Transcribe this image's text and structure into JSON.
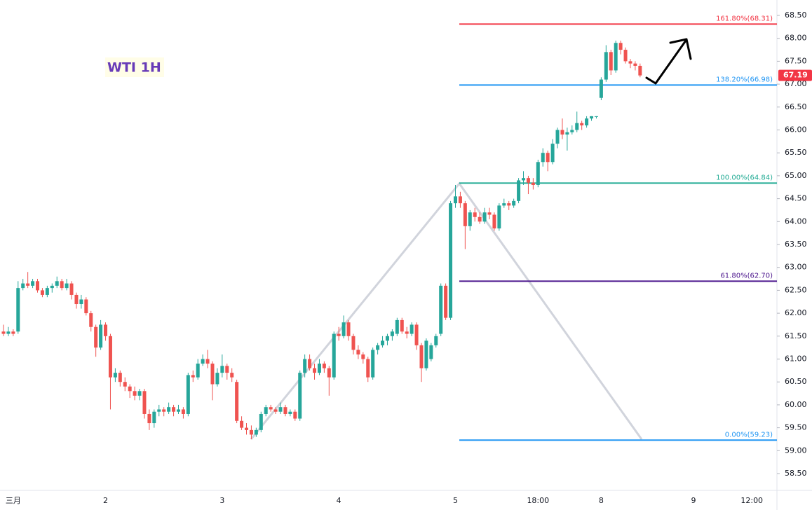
{
  "chart_data": {
    "type": "candlestick",
    "title": "WTI 1H",
    "up_color": "#26a69a",
    "down_color": "#ef5350",
    "categories": [
      null,
      null,
      "三月",
      null,
      null,
      null,
      null,
      null,
      null,
      null,
      null,
      null,
      null,
      null,
      null,
      null,
      null,
      null,
      null,
      null,
      null,
      "2",
      null,
      null,
      null,
      null,
      null,
      null,
      null,
      null,
      null,
      null,
      null,
      null,
      null,
      null,
      null,
      null,
      null,
      null,
      null,
      null,
      null,
      null,
      null,
      "3",
      null,
      null,
      null,
      null,
      null,
      null,
      null,
      null,
      null,
      null,
      null,
      null,
      null,
      null,
      null,
      null,
      null,
      null,
      null,
      null,
      null,
      null,
      null,
      "4",
      null,
      null,
      null,
      null,
      null,
      null,
      null,
      null,
      null,
      null,
      null,
      null,
      null,
      null,
      null,
      null,
      null,
      null,
      null,
      null,
      null,
      null,
      null,
      "5",
      null,
      null,
      null,
      null,
      null,
      null,
      null,
      null,
      null,
      null,
      null,
      null,
      null,
      null,
      null,
      null,
      "18:00",
      null,
      null,
      null,
      null,
      null,
      null,
      null,
      null,
      null,
      null,
      null,
      null,
      "8",
      null,
      null,
      null,
      null,
      null,
      null,
      null,
      null,
      null,
      null,
      null,
      null,
      null,
      null,
      null,
      null,
      null,
      null,
      "9",
      null,
      null,
      null,
      null,
      null,
      null,
      null,
      null,
      null,
      null,
      null,
      "12:00",
      null,
      null,
      null,
      null,
      null
    ],
    "candles": [
      [
        61.6,
        61.75,
        61.5,
        61.55
      ],
      [
        61.55,
        61.7,
        61.5,
        61.6
      ],
      [
        61.6,
        61.65,
        61.5,
        61.55
      ],
      [
        61.6,
        62.7,
        61.55,
        62.55
      ],
      [
        62.55,
        62.75,
        62.5,
        62.65
      ],
      [
        62.65,
        62.9,
        62.55,
        62.6
      ],
      [
        62.6,
        62.75,
        62.55,
        62.7
      ],
      [
        62.7,
        62.75,
        62.45,
        62.5
      ],
      [
        62.5,
        62.55,
        62.35,
        62.4
      ],
      [
        62.4,
        62.6,
        62.35,
        62.55
      ],
      [
        62.55,
        62.65,
        62.45,
        62.6
      ],
      [
        62.6,
        62.8,
        62.55,
        62.7
      ],
      [
        62.7,
        62.75,
        62.5,
        62.55
      ],
      [
        62.55,
        62.75,
        62.5,
        62.65
      ],
      [
        62.65,
        62.7,
        62.3,
        62.4
      ],
      [
        62.4,
        62.45,
        62.1,
        62.2
      ],
      [
        62.2,
        62.4,
        62.1,
        62.3
      ],
      [
        62.3,
        62.35,
        61.95,
        62.0
      ],
      [
        62.0,
        62.05,
        61.6,
        61.7
      ],
      [
        61.7,
        61.75,
        61.05,
        61.25
      ],
      [
        61.25,
        61.85,
        61.2,
        61.75
      ],
      [
        61.75,
        61.8,
        61.4,
        61.5
      ],
      [
        61.5,
        61.55,
        59.9,
        60.6
      ],
      [
        60.6,
        60.8,
        60.5,
        60.7
      ],
      [
        60.7,
        60.75,
        60.4,
        60.5
      ],
      [
        60.5,
        60.6,
        60.3,
        60.4
      ],
      [
        60.4,
        60.45,
        60.15,
        60.3
      ],
      [
        60.3,
        60.4,
        60.1,
        60.2
      ],
      [
        60.2,
        60.35,
        60.1,
        60.3
      ],
      [
        60.3,
        60.35,
        59.7,
        59.8
      ],
      [
        59.8,
        59.9,
        59.45,
        59.6
      ],
      [
        59.6,
        59.9,
        59.5,
        59.85
      ],
      [
        59.85,
        60.0,
        59.75,
        59.9
      ],
      [
        59.9,
        59.95,
        59.75,
        59.85
      ],
      [
        59.85,
        60.05,
        59.8,
        59.95
      ],
      [
        59.95,
        60.0,
        59.75,
        59.85
      ],
      [
        59.85,
        60.0,
        59.8,
        59.9
      ],
      [
        59.9,
        59.95,
        59.7,
        59.8
      ],
      [
        59.8,
        60.7,
        59.75,
        60.65
      ],
      [
        60.65,
        60.75,
        60.5,
        60.6
      ],
      [
        60.6,
        61.0,
        60.55,
        60.9
      ],
      [
        60.9,
        61.1,
        60.85,
        61.0
      ],
      [
        61.0,
        61.2,
        60.8,
        60.9
      ],
      [
        60.9,
        60.95,
        60.1,
        60.45
      ],
      [
        60.45,
        60.8,
        60.4,
        60.7
      ],
      [
        60.7,
        61.1,
        60.6,
        60.85
      ],
      [
        60.85,
        60.9,
        60.55,
        60.7
      ],
      [
        60.7,
        60.8,
        60.5,
        60.6
      ],
      [
        60.5,
        60.55,
        59.6,
        59.65
      ],
      [
        59.65,
        59.75,
        59.45,
        59.5
      ],
      [
        59.5,
        59.6,
        59.35,
        59.45
      ],
      [
        59.45,
        59.55,
        59.25,
        59.35
      ],
      [
        59.35,
        59.5,
        59.3,
        59.45
      ],
      [
        59.45,
        59.85,
        59.4,
        59.8
      ],
      [
        59.8,
        60.0,
        59.75,
        59.95
      ],
      [
        59.95,
        60.0,
        59.85,
        59.9
      ],
      [
        59.9,
        59.95,
        59.8,
        59.85
      ],
      [
        59.85,
        60.05,
        59.8,
        59.95
      ],
      [
        59.95,
        60.0,
        59.75,
        59.8
      ],
      [
        59.8,
        59.9,
        59.75,
        59.85
      ],
      [
        59.85,
        59.9,
        59.65,
        59.7
      ],
      [
        59.7,
        60.75,
        59.65,
        60.7
      ],
      [
        60.7,
        61.1,
        60.6,
        61.0
      ],
      [
        61.0,
        61.1,
        60.75,
        60.8
      ],
      [
        60.8,
        60.9,
        60.55,
        60.7
      ],
      [
        60.7,
        61.0,
        60.65,
        60.9
      ],
      [
        60.9,
        60.95,
        60.7,
        60.8
      ],
      [
        60.8,
        60.85,
        60.2,
        60.6
      ],
      [
        60.6,
        61.6,
        60.55,
        61.55
      ],
      [
        61.55,
        61.7,
        61.4,
        61.5
      ],
      [
        61.5,
        61.95,
        61.45,
        61.8
      ],
      [
        61.8,
        61.85,
        61.4,
        61.5
      ],
      [
        61.5,
        61.55,
        61.1,
        61.2
      ],
      [
        61.2,
        61.3,
        61.0,
        61.1
      ],
      [
        61.1,
        61.15,
        60.9,
        61.0
      ],
      [
        61.0,
        61.05,
        60.5,
        60.6
      ],
      [
        60.6,
        61.25,
        60.55,
        61.2
      ],
      [
        61.2,
        61.35,
        61.1,
        61.3
      ],
      [
        61.3,
        61.5,
        61.25,
        61.4
      ],
      [
        61.4,
        61.55,
        61.3,
        61.5
      ],
      [
        61.5,
        61.65,
        61.4,
        61.6
      ],
      [
        61.55,
        61.9,
        61.5,
        61.85
      ],
      [
        61.85,
        61.9,
        61.55,
        61.6
      ],
      [
        61.6,
        61.7,
        61.45,
        61.55
      ],
      [
        61.55,
        61.8,
        61.5,
        61.75
      ],
      [
        61.75,
        61.8,
        61.2,
        61.3
      ],
      [
        61.3,
        61.35,
        60.5,
        60.8
      ],
      [
        60.8,
        61.45,
        60.75,
        61.4
      ],
      [
        61.0,
        61.35,
        60.95,
        61.3
      ],
      [
        61.3,
        61.55,
        61.25,
        61.5
      ],
      [
        61.55,
        62.65,
        61.5,
        62.6
      ],
      [
        62.6,
        62.65,
        61.85,
        61.9
      ],
      [
        61.9,
        64.45,
        61.85,
        64.4
      ],
      [
        64.4,
        64.8,
        64.3,
        64.55
      ],
      [
        64.55,
        64.65,
        64.3,
        64.4
      ],
      [
        64.4,
        64.45,
        63.4,
        63.9
      ],
      [
        63.9,
        64.25,
        63.8,
        64.2
      ],
      [
        64.2,
        64.3,
        64.0,
        64.1
      ],
      [
        64.1,
        64.2,
        63.95,
        64.0
      ],
      [
        64.0,
        64.3,
        63.95,
        64.2
      ],
      [
        64.2,
        64.3,
        64.05,
        64.15
      ],
      [
        64.15,
        64.2,
        63.8,
        63.85
      ],
      [
        63.85,
        64.4,
        63.8,
        64.35
      ],
      [
        64.35,
        64.5,
        64.3,
        64.4
      ],
      [
        64.4,
        64.45,
        64.25,
        64.35
      ],
      [
        64.35,
        64.5,
        64.3,
        64.45
      ],
      [
        64.45,
        64.95,
        64.4,
        64.9
      ],
      [
        64.9,
        65.1,
        64.8,
        64.95
      ],
      [
        64.95,
        65.0,
        64.6,
        64.85
      ],
      [
        64.85,
        64.95,
        64.7,
        64.8
      ],
      [
        64.8,
        65.35,
        64.75,
        65.3
      ],
      [
        65.3,
        65.6,
        65.2,
        65.5
      ],
      [
        65.5,
        65.55,
        65.1,
        65.3
      ],
      [
        65.3,
        65.8,
        65.25,
        65.7
      ],
      [
        65.7,
        66.05,
        65.6,
        66.0
      ],
      [
        66.0,
        66.25,
        65.8,
        65.9
      ],
      [
        65.9,
        66.05,
        65.55,
        65.95
      ],
      [
        65.95,
        66.1,
        65.9,
        66.0
      ],
      [
        66.0,
        66.4,
        65.95,
        66.15
      ],
      [
        66.15,
        66.2,
        66.0,
        66.1
      ],
      [
        66.1,
        66.3,
        66.05,
        66.25
      ],
      [
        66.25,
        66.3,
        66.2,
        66.3
      ],
      [
        66.3,
        66.3,
        66.25,
        66.3
      ],
      [
        66.7,
        67.15,
        66.65,
        67.1
      ],
      [
        67.1,
        67.85,
        67.05,
        67.7
      ],
      [
        67.7,
        67.75,
        67.2,
        67.3
      ],
      [
        67.3,
        67.95,
        67.25,
        67.9
      ],
      [
        67.9,
        67.95,
        67.65,
        67.75
      ],
      [
        67.75,
        67.8,
        67.45,
        67.5
      ],
      [
        67.5,
        67.55,
        67.35,
        67.45
      ],
      [
        67.45,
        67.5,
        67.3,
        67.4
      ],
      [
        67.4,
        67.45,
        67.15,
        67.19
      ],
      null,
      null,
      null,
      null,
      null,
      null,
      null,
      null,
      null,
      null,
      null,
      null,
      null,
      null,
      null,
      null,
      null,
      null,
      null,
      null,
      null,
      null,
      null,
      null,
      null,
      null,
      null,
      null
    ],
    "ylim": [
      58.28,
      68.79
    ],
    "yticks": [
      {
        "value": 58.5,
        "label": "58.50"
      },
      {
        "value": 59,
        "label": "59.00"
      },
      {
        "value": 59.5,
        "label": "59.50"
      },
      {
        "value": 60,
        "label": "60.00"
      },
      {
        "value": 60.5,
        "label": "60.50"
      },
      {
        "value": 61,
        "label": "61.00"
      },
      {
        "value": 61.5,
        "label": "61.50"
      },
      {
        "value": 62,
        "label": "62.00"
      },
      {
        "value": 62.5,
        "label": "62.50"
      },
      {
        "value": 63,
        "label": "63.00"
      },
      {
        "value": 63.5,
        "label": "63.50"
      },
      {
        "value": 64,
        "label": "64.00"
      },
      {
        "value": 64.5,
        "label": "64.50"
      },
      {
        "value": 65,
        "label": "65.00"
      },
      {
        "value": 65.5,
        "label": "65.50"
      },
      {
        "value": 66,
        "label": "66.00"
      },
      {
        "value": 66.5,
        "label": "66.50"
      },
      {
        "value": 67,
        "label": "67.00"
      },
      {
        "value": 67.5,
        "label": "67.50"
      },
      {
        "value": 68,
        "label": "68.00"
      },
      {
        "value": 68.5,
        "label": "68.50"
      }
    ],
    "fib_levels": [
      {
        "label": "161.80%(68.31)",
        "value": 68.31,
        "color": "#f23645"
      },
      {
        "label": "138.20%(66.98)",
        "value": 66.98,
        "color": "#2196f3"
      },
      {
        "label": "100.00%(64.84)",
        "value": 64.84,
        "color": "#22ab94"
      },
      {
        "label": "61.80%(62.70)",
        "value": 62.7,
        "color": "#4a148c"
      },
      {
        "label": "0.00%(59.23)",
        "value": 59.23,
        "color": "#2196f3"
      }
    ],
    "last_price": 67.19,
    "last_price_color": "#f23645"
  }
}
